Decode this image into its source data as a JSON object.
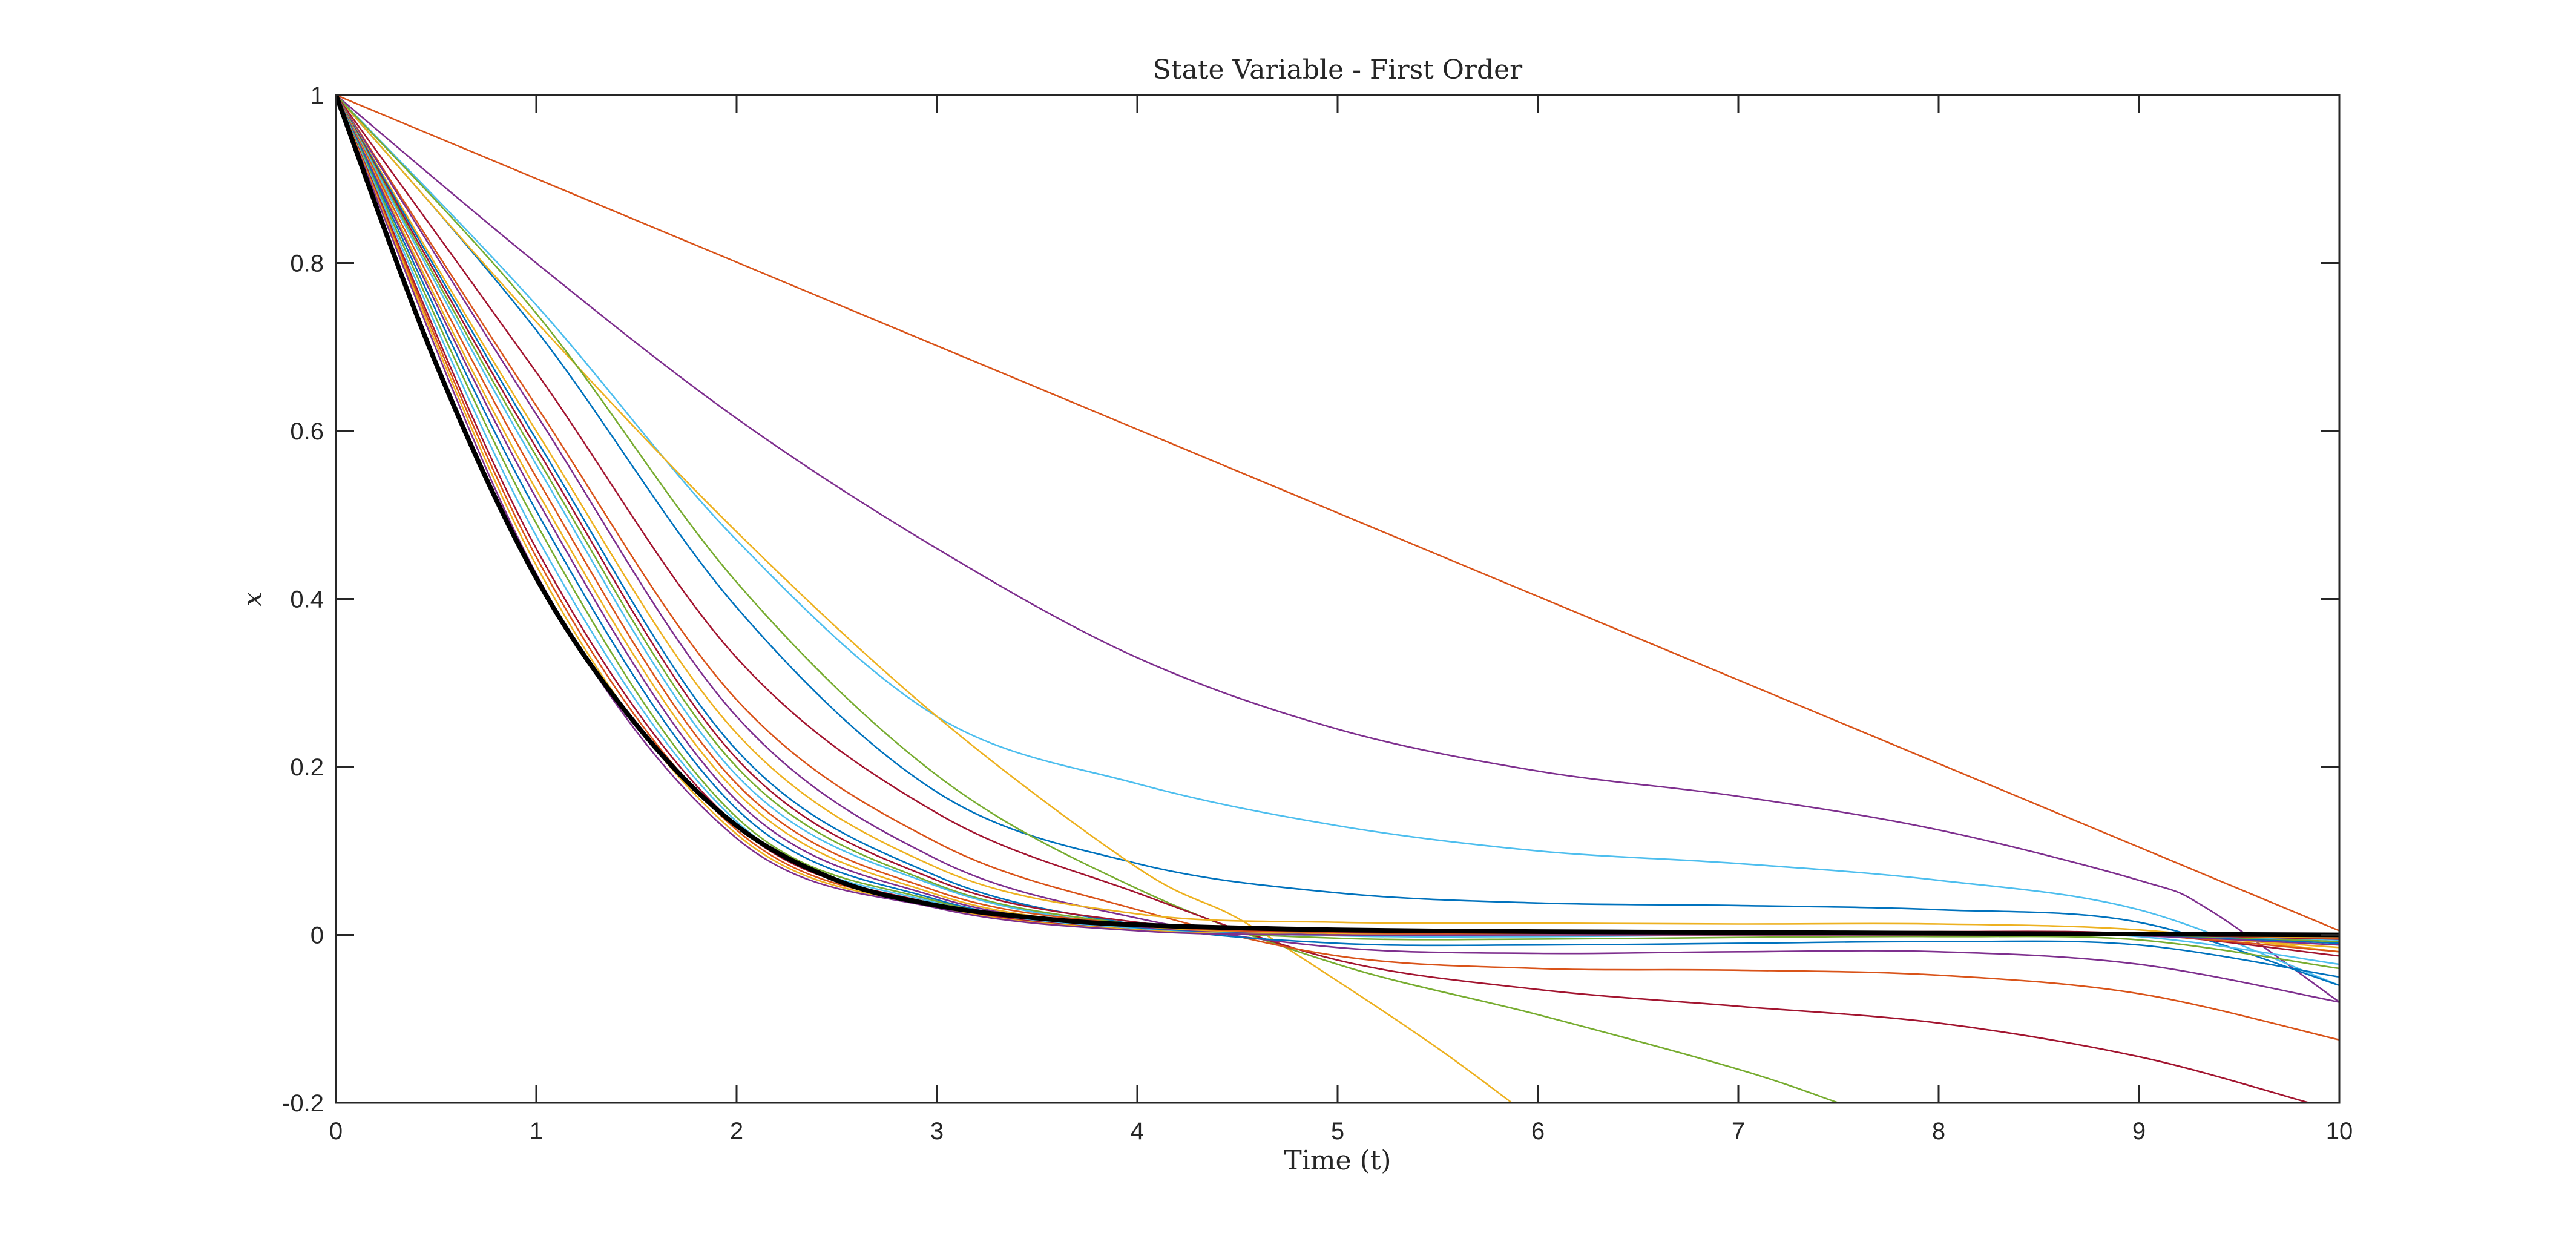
{
  "chart_data": {
    "type": "line",
    "title": "State Variable - First Order",
    "xlabel": "Time (t)",
    "ylabel": "x",
    "xlim": [
      0,
      10
    ],
    "ylim": [
      -0.2,
      1
    ],
    "x_ticks": [
      0,
      1,
      2,
      3,
      4,
      5,
      6,
      7,
      8,
      9,
      10
    ],
    "y_ticks": [
      -0.2,
      0,
      0.2,
      0.4,
      0.6,
      0.8,
      1
    ],
    "x_tick_labels": [
      "0",
      "1",
      "2",
      "3",
      "4",
      "5",
      "6",
      "7",
      "8",
      "9",
      "10"
    ],
    "y_tick_labels": [
      "-0.2",
      "0",
      "0.2",
      "0.4",
      "0.6",
      "0.8",
      "1"
    ],
    "grid": false,
    "legend": "none",
    "box": true,
    "series": [
      {
        "color": "#D95319",
        "width": 1,
        "points": [
          [
            0,
            1
          ],
          [
            10,
            0.005
          ]
        ]
      },
      {
        "color": "#7E2F8E",
        "width": 1,
        "points": [
          [
            0,
            1
          ],
          [
            1,
            0.8
          ],
          [
            2,
            0.615
          ],
          [
            3,
            0.46
          ],
          [
            4,
            0.33
          ],
          [
            5,
            0.245
          ],
          [
            6,
            0.195
          ],
          [
            7,
            0.165
          ],
          [
            8,
            0.125
          ],
          [
            9,
            0.065
          ],
          [
            9.35,
            0.03
          ],
          [
            10,
            -0.08
          ]
        ]
      },
      {
        "color": "#4DBEEE",
        "width": 1,
        "points": [
          [
            0,
            1
          ],
          [
            1,
            0.75
          ],
          [
            2,
            0.47
          ],
          [
            3,
            0.26
          ],
          [
            4,
            0.18
          ],
          [
            5,
            0.13
          ],
          [
            6,
            0.1
          ],
          [
            7,
            0.085
          ],
          [
            8,
            0.065
          ],
          [
            9,
            0.03
          ],
          [
            10,
            -0.06
          ]
        ]
      },
      {
        "color": "#0072BD",
        "width": 1,
        "points": [
          [
            0,
            1
          ],
          [
            1,
            0.72
          ],
          [
            2,
            0.39
          ],
          [
            3,
            0.17
          ],
          [
            4,
            0.085
          ],
          [
            5,
            0.05
          ],
          [
            6,
            0.038
          ],
          [
            7,
            0.035
          ],
          [
            8,
            0.03
          ],
          [
            9,
            0.015
          ],
          [
            10,
            -0.06
          ]
        ]
      },
      {
        "color": "#EDB120",
        "width": 1,
        "points": [
          [
            0,
            1
          ],
          [
            1,
            0.73
          ],
          [
            2,
            0.48
          ],
          [
            3,
            0.26
          ],
          [
            4,
            0.08
          ],
          [
            4.5,
            0.02
          ],
          [
            5,
            -0.055
          ],
          [
            5.5,
            -0.135
          ],
          [
            5.87,
            -0.2
          ]
        ]
      },
      {
        "color": "#77AC30",
        "width": 1,
        "points": [
          [
            0,
            1
          ],
          [
            1,
            0.74
          ],
          [
            2,
            0.42
          ],
          [
            3,
            0.19
          ],
          [
            4,
            0.055
          ],
          [
            5,
            -0.035
          ],
          [
            6,
            -0.095
          ],
          [
            7,
            -0.16
          ],
          [
            7.5,
            -0.2
          ]
        ]
      },
      {
        "color": "#A2142F",
        "width": 1,
        "points": [
          [
            0,
            1
          ],
          [
            1,
            0.67
          ],
          [
            2,
            0.33
          ],
          [
            3,
            0.145
          ],
          [
            4,
            0.05
          ],
          [
            5,
            -0.03
          ],
          [
            6,
            -0.065
          ],
          [
            7,
            -0.085
          ],
          [
            8,
            -0.105
          ],
          [
            9,
            -0.145
          ],
          [
            9.85,
            -0.2
          ]
        ]
      },
      {
        "color": "#D95319",
        "width": 1,
        "points": [
          [
            0,
            1
          ],
          [
            1,
            0.63
          ],
          [
            2,
            0.28
          ],
          [
            3,
            0.11
          ],
          [
            4,
            0.03
          ],
          [
            5,
            -0.025
          ],
          [
            6,
            -0.04
          ],
          [
            7,
            -0.042
          ],
          [
            8,
            -0.048
          ],
          [
            9,
            -0.07
          ],
          [
            10,
            -0.125
          ]
        ]
      },
      {
        "color": "#7E2F8E",
        "width": 1,
        "points": [
          [
            0,
            1
          ],
          [
            1,
            0.62
          ],
          [
            2,
            0.26
          ],
          [
            3,
            0.09
          ],
          [
            4,
            0.02
          ],
          [
            5,
            -0.015
          ],
          [
            6,
            -0.022
          ],
          [
            7,
            -0.02
          ],
          [
            8,
            -0.02
          ],
          [
            9,
            -0.035
          ],
          [
            10,
            -0.08
          ]
        ]
      },
      {
        "color": "#EDB120",
        "width": 1,
        "points": [
          [
            0,
            1
          ],
          [
            1,
            0.6
          ],
          [
            2,
            0.24
          ],
          [
            3,
            0.08
          ],
          [
            4,
            0.025
          ],
          [
            5,
            0.015
          ],
          [
            6,
            0.014
          ],
          [
            7,
            0.013
          ],
          [
            8,
            0.013
          ],
          [
            9,
            0.006
          ],
          [
            10,
            -0.02
          ]
        ]
      },
      {
        "color": "#0072BD",
        "width": 1,
        "points": [
          [
            0,
            1
          ],
          [
            1,
            0.59
          ],
          [
            2,
            0.22
          ],
          [
            3,
            0.07
          ],
          [
            4,
            0.012
          ],
          [
            5,
            -0.01
          ],
          [
            6,
            -0.012
          ],
          [
            7,
            -0.01
          ],
          [
            8,
            -0.008
          ],
          [
            9,
            -0.012
          ],
          [
            10,
            -0.05
          ]
        ]
      },
      {
        "color": "#A2142F",
        "width": 1,
        "points": [
          [
            0,
            1
          ],
          [
            1,
            0.58
          ],
          [
            2,
            0.21
          ],
          [
            3,
            0.065
          ],
          [
            4,
            0.015
          ],
          [
            5,
            0.003
          ],
          [
            6,
            0.002
          ],
          [
            7,
            0.003
          ],
          [
            8,
            0.004
          ],
          [
            9,
            0.001
          ],
          [
            10,
            -0.025
          ]
        ]
      },
      {
        "color": "#77AC30",
        "width": 1,
        "points": [
          [
            0,
            1
          ],
          [
            1,
            0.57
          ],
          [
            2,
            0.2
          ],
          [
            3,
            0.06
          ],
          [
            4,
            0.012
          ],
          [
            5,
            -0.004
          ],
          [
            6,
            -0.005
          ],
          [
            7,
            -0.003
          ],
          [
            8,
            -0.002
          ],
          [
            9,
            -0.006
          ],
          [
            10,
            -0.04
          ]
        ]
      },
      {
        "color": "#4DBEEE",
        "width": 1,
        "points": [
          [
            0,
            1
          ],
          [
            1,
            0.56
          ],
          [
            2,
            0.19
          ],
          [
            3,
            0.058
          ],
          [
            4,
            0.01
          ],
          [
            5,
            -0.001
          ],
          [
            6,
            -0.002
          ],
          [
            7,
            0.0
          ],
          [
            8,
            0.002
          ],
          [
            9,
            -0.002
          ],
          [
            10,
            -0.035
          ]
        ]
      },
      {
        "color": "#D95319",
        "width": 1,
        "points": [
          [
            0,
            1
          ],
          [
            1,
            0.545
          ],
          [
            2,
            0.18
          ],
          [
            3,
            0.052
          ],
          [
            4,
            0.012
          ],
          [
            5,
            0.002
          ],
          [
            6,
            0.001
          ],
          [
            7,
            0.002
          ],
          [
            8,
            0.003
          ],
          [
            9,
            0.0
          ],
          [
            10,
            -0.02
          ]
        ]
      },
      {
        "color": "#EDB120",
        "width": 1,
        "points": [
          [
            0,
            1
          ],
          [
            1,
            0.53
          ],
          [
            2,
            0.17
          ],
          [
            3,
            0.048
          ],
          [
            4,
            0.01
          ],
          [
            5,
            0.001
          ],
          [
            6,
            0.0
          ],
          [
            7,
            0.001
          ],
          [
            8,
            0.002
          ],
          [
            9,
            0.0
          ],
          [
            10,
            -0.015
          ]
        ]
      },
      {
        "color": "#7E2F8E",
        "width": 1,
        "points": [
          [
            0,
            1
          ],
          [
            1,
            0.52
          ],
          [
            2,
            0.16
          ],
          [
            3,
            0.045
          ],
          [
            4,
            0.009
          ],
          [
            5,
            0.0
          ],
          [
            6,
            0.0
          ],
          [
            7,
            0.0
          ],
          [
            8,
            0.001
          ],
          [
            9,
            -0.001
          ],
          [
            10,
            -0.012
          ]
        ]
      },
      {
        "color": "#0072BD",
        "width": 1,
        "points": [
          [
            0,
            1
          ],
          [
            1,
            0.505
          ],
          [
            2,
            0.15
          ],
          [
            3,
            0.042
          ],
          [
            4,
            0.008
          ],
          [
            5,
            0.0
          ],
          [
            6,
            0.0
          ],
          [
            7,
            0.0
          ],
          [
            8,
            0.0
          ],
          [
            9,
            0.0
          ],
          [
            10,
            -0.01
          ]
        ]
      },
      {
        "color": "#77AC30",
        "width": 1,
        "points": [
          [
            0,
            1
          ],
          [
            1,
            0.49
          ],
          [
            2,
            0.14
          ],
          [
            3,
            0.04
          ],
          [
            4,
            0.007
          ],
          [
            5,
            0.0
          ],
          [
            6,
            0.0
          ],
          [
            7,
            0.0
          ],
          [
            8,
            0.0
          ],
          [
            9,
            0.0
          ],
          [
            10,
            -0.008
          ]
        ]
      },
      {
        "color": "#4DBEEE",
        "width": 1,
        "points": [
          [
            0,
            1
          ],
          [
            1,
            0.475
          ],
          [
            2,
            0.135
          ],
          [
            3,
            0.038
          ],
          [
            4,
            0.007
          ],
          [
            5,
            0.0
          ],
          [
            6,
            0.0
          ],
          [
            7,
            0.0
          ],
          [
            8,
            0.0
          ],
          [
            9,
            0.0
          ],
          [
            10,
            -0.006
          ]
        ]
      },
      {
        "color": "#A2142F",
        "width": 1,
        "points": [
          [
            0,
            1
          ],
          [
            1,
            0.46
          ],
          [
            2,
            0.13
          ],
          [
            3,
            0.036
          ],
          [
            4,
            0.006
          ],
          [
            5,
            0.0
          ],
          [
            6,
            0.0
          ],
          [
            7,
            0.0
          ],
          [
            8,
            0.0
          ],
          [
            9,
            0.0
          ],
          [
            10,
            -0.005
          ]
        ]
      },
      {
        "color": "#D95319",
        "width": 1,
        "points": [
          [
            0,
            1
          ],
          [
            1,
            0.45
          ],
          [
            2,
            0.125
          ],
          [
            3,
            0.034
          ],
          [
            4,
            0.006
          ],
          [
            5,
            0.0
          ],
          [
            6,
            0.0
          ],
          [
            7,
            0.0
          ],
          [
            8,
            0.0
          ],
          [
            9,
            0.0
          ],
          [
            10,
            -0.004
          ]
        ]
      },
      {
        "color": "#EDB120",
        "width": 1,
        "points": [
          [
            0,
            1
          ],
          [
            1,
            0.44
          ],
          [
            2,
            0.12
          ],
          [
            3,
            0.033
          ],
          [
            4,
            0.006
          ],
          [
            5,
            0.0
          ],
          [
            6,
            0.0
          ],
          [
            7,
            0.0
          ],
          [
            8,
            0.0
          ],
          [
            9,
            0.0
          ],
          [
            10,
            -0.003
          ]
        ]
      },
      {
        "color": "#7E2F8E",
        "width": 1,
        "points": [
          [
            0,
            1
          ],
          [
            1,
            0.43
          ],
          [
            2,
            0.115
          ],
          [
            3,
            0.032
          ],
          [
            4,
            0.005
          ],
          [
            5,
            0.0
          ],
          [
            6,
            0.0
          ],
          [
            7,
            0.0
          ],
          [
            8,
            0.0
          ],
          [
            9,
            0.0
          ],
          [
            10,
            -0.002
          ]
        ]
      },
      {
        "color": "#000000",
        "width": 3,
        "points": [
          [
            0,
            1
          ],
          [
            0.5,
            0.68
          ],
          [
            1,
            0.425
          ],
          [
            1.5,
            0.25
          ],
          [
            2,
            0.13
          ],
          [
            2.5,
            0.065
          ],
          [
            3,
            0.035
          ],
          [
            3.5,
            0.02
          ],
          [
            4,
            0.012
          ],
          [
            5,
            0.006
          ],
          [
            6,
            0.004
          ],
          [
            7,
            0.003
          ],
          [
            8,
            0.002
          ],
          [
            9,
            0.001
          ],
          [
            10,
            0.0
          ]
        ]
      }
    ]
  }
}
